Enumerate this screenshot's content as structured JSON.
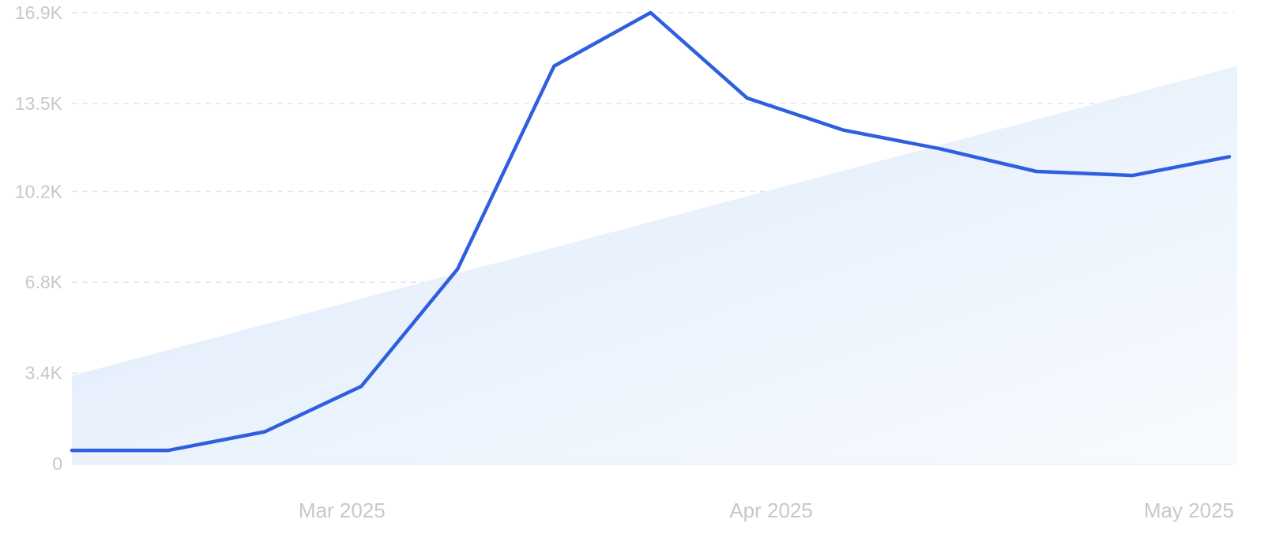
{
  "chart_data": {
    "type": "line",
    "title": "",
    "xlabel": "",
    "ylabel": "",
    "ylim": [
      0,
      16900
    ],
    "y_ticks": [
      {
        "value": 0,
        "label": "0"
      },
      {
        "value": 3400,
        "label": "3.4K"
      },
      {
        "value": 6800,
        "label": "6.8K"
      },
      {
        "value": 10200,
        "label": "10.2K"
      },
      {
        "value": 13500,
        "label": "13.5K"
      },
      {
        "value": 16900,
        "label": "16.9K"
      }
    ],
    "x_ticks": [
      {
        "index": 2.8,
        "label": "Mar 2025"
      },
      {
        "index": 7.25,
        "label": "Apr 2025"
      },
      {
        "index": 12,
        "label": "May 2025"
      }
    ],
    "grid": true,
    "series": [
      {
        "values": [
          500,
          500,
          1200,
          2900,
          7300,
          14900,
          16900,
          13700,
          12500,
          11800,
          10950,
          10800,
          11500
        ],
        "color": "#2f5fde"
      }
    ],
    "trend": {
      "start": 3300,
      "end": 14900,
      "color": "#dbe9fb"
    }
  }
}
